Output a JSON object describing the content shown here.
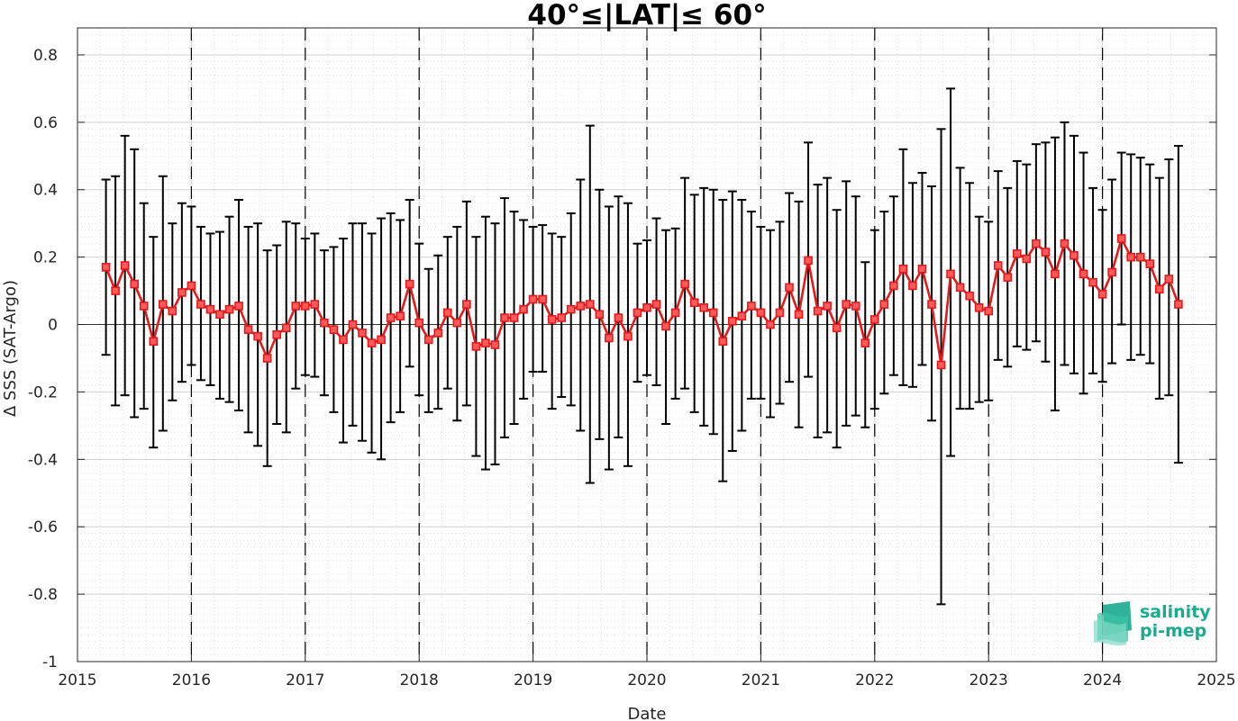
{
  "chart_data": {
    "type": "line",
    "title": "40°≤|LAT|≤ 60°",
    "xlabel": "Date",
    "ylabel": "Δ SSS (SAT-Argo)",
    "xlim": [
      2015,
      2025
    ],
    "ylim": [
      -1,
      0.88
    ],
    "xticks": [
      2015,
      2016,
      2017,
      2018,
      2019,
      2020,
      2021,
      2022,
      2023,
      2024,
      2025
    ],
    "xtick_labels": [
      "2015",
      "2016",
      "2017",
      "2018",
      "2019",
      "2020",
      "2021",
      "2022",
      "2023",
      "2024",
      "2025"
    ],
    "yticks": [
      -1,
      -0.8,
      -0.6,
      -0.4,
      -0.2,
      0,
      0.2,
      0.4,
      0.6,
      0.8
    ],
    "ytick_labels": [
      "-1",
      "-0.8",
      "-0.6",
      "-0.4",
      "-0.2",
      "0",
      "0.2",
      "0.4",
      "0.6",
      "0.8"
    ],
    "grid": "dotted major and minor",
    "year_markers": "dashed vertical lines at each year",
    "zero_line": true,
    "colors": {
      "series": "#e31a1c",
      "errorbar": "#000000",
      "grid": "#d0d0d0"
    },
    "series": [
      {
        "x": [
          "2015-04",
          "2015-05",
          "2015-06",
          "2015-07",
          "2015-08",
          "2015-09",
          "2015-10",
          "2015-11",
          "2015-12",
          "2016-01",
          "2016-02",
          "2016-03",
          "2016-04",
          "2016-05",
          "2016-06",
          "2016-07",
          "2016-08",
          "2016-09",
          "2016-10",
          "2016-11",
          "2016-12",
          "2017-01",
          "2017-02",
          "2017-03",
          "2017-04",
          "2017-05",
          "2017-06",
          "2017-07",
          "2017-08",
          "2017-09",
          "2017-10",
          "2017-11",
          "2017-12",
          "2018-01",
          "2018-02",
          "2018-03",
          "2018-04",
          "2018-05",
          "2018-06",
          "2018-07",
          "2018-08",
          "2018-09",
          "2018-10",
          "2018-11",
          "2018-12",
          "2019-01",
          "2019-02",
          "2019-03",
          "2019-04",
          "2019-05",
          "2019-06",
          "2019-07",
          "2019-08",
          "2019-09",
          "2019-10",
          "2019-11",
          "2019-12",
          "2020-01",
          "2020-02",
          "2020-03",
          "2020-04",
          "2020-05",
          "2020-06",
          "2020-07",
          "2020-08",
          "2020-09",
          "2020-10",
          "2020-11",
          "2020-12",
          "2021-01",
          "2021-02",
          "2021-03",
          "2021-04",
          "2021-05",
          "2021-06",
          "2021-07",
          "2021-08",
          "2021-09",
          "2021-10",
          "2021-11",
          "2021-12",
          "2022-01",
          "2022-02",
          "2022-03",
          "2022-04",
          "2022-05",
          "2022-06",
          "2022-07",
          "2022-08",
          "2022-09",
          "2022-10",
          "2022-11",
          "2022-12",
          "2023-01",
          "2023-02",
          "2023-03",
          "2023-04",
          "2023-05",
          "2023-06",
          "2023-07",
          "2023-08",
          "2023-09",
          "2023-10",
          "2023-11",
          "2023-12",
          "2024-01",
          "2024-02",
          "2024-03",
          "2024-04",
          "2024-05",
          "2024-06",
          "2024-07",
          "2024-08",
          "2024-09"
        ],
        "mean": [
          0.17,
          0.1,
          0.175,
          0.12,
          0.055,
          -0.05,
          0.06,
          0.04,
          0.095,
          0.115,
          0.06,
          0.045,
          0.03,
          0.045,
          0.055,
          -0.015,
          -0.035,
          -0.1,
          -0.03,
          -0.01,
          0.055,
          0.055,
          0.06,
          0.005,
          -0.015,
          -0.045,
          0.0,
          -0.025,
          -0.055,
          -0.045,
          0.02,
          0.025,
          0.12,
          0.005,
          -0.045,
          -0.025,
          0.035,
          0.005,
          0.06,
          -0.065,
          -0.055,
          -0.06,
          0.02,
          0.02,
          0.045,
          0.075,
          0.075,
          0.015,
          0.02,
          0.045,
          0.055,
          0.06,
          0.03,
          -0.04,
          0.02,
          -0.035,
          0.035,
          0.05,
          0.06,
          -0.005,
          0.035,
          0.12,
          0.065,
          0.05,
          0.035,
          -0.05,
          0.01,
          0.025,
          0.055,
          0.035,
          0.0,
          0.035,
          0.11,
          0.03,
          0.19,
          0.04,
          0.055,
          -0.01,
          0.06,
          0.055,
          -0.055,
          0.015,
          0.06,
          0.115,
          0.165,
          0.115,
          0.165,
          0.06,
          -0.12,
          0.15,
          0.11,
          0.085,
          0.05,
          0.04,
          0.175,
          0.14,
          0.21,
          0.195,
          0.24,
          0.215,
          0.15,
          0.24,
          0.205,
          0.15,
          0.125,
          0.09,
          0.155,
          0.255,
          0.2,
          0.2,
          0.18,
          0.105,
          0.135,
          0.06
        ],
        "upper": [
          0.43,
          0.44,
          0.56,
          0.52,
          0.36,
          0.26,
          0.44,
          0.3,
          0.36,
          0.35,
          0.29,
          0.27,
          0.275,
          0.32,
          0.37,
          0.29,
          0.3,
          0.22,
          0.235,
          0.305,
          0.3,
          0.255,
          0.27,
          0.22,
          0.23,
          0.255,
          0.3,
          0.3,
          0.27,
          0.315,
          0.33,
          0.31,
          0.37,
          0.24,
          0.165,
          0.205,
          0.26,
          0.29,
          0.365,
          0.26,
          0.32,
          0.3,
          0.375,
          0.335,
          0.31,
          0.29,
          0.295,
          0.27,
          0.26,
          0.33,
          0.43,
          0.59,
          0.4,
          0.35,
          0.38,
          0.36,
          0.24,
          0.25,
          0.315,
          0.28,
          0.285,
          0.435,
          0.385,
          0.405,
          0.4,
          0.37,
          0.395,
          0.37,
          0.335,
          0.29,
          0.28,
          0.305,
          0.39,
          0.365,
          0.54,
          0.415,
          0.435,
          0.34,
          0.425,
          0.38,
          0.185,
          0.28,
          0.335,
          0.38,
          0.52,
          0.42,
          0.45,
          0.41,
          0.58,
          0.7,
          0.465,
          0.42,
          0.32,
          0.305,
          0.455,
          0.405,
          0.485,
          0.475,
          0.535,
          0.54,
          0.555,
          0.6,
          0.56,
          0.51,
          0.405,
          0.34,
          0.43,
          0.51,
          0.505,
          0.495,
          0.475,
          0.435,
          0.49,
          0.53
        ],
        "lower": [
          -0.09,
          -0.24,
          -0.21,
          -0.275,
          -0.25,
          -0.365,
          -0.315,
          -0.225,
          -0.17,
          -0.12,
          -0.165,
          -0.18,
          -0.22,
          -0.23,
          -0.255,
          -0.32,
          -0.36,
          -0.42,
          -0.295,
          -0.32,
          -0.19,
          -0.15,
          -0.155,
          -0.21,
          -0.26,
          -0.35,
          -0.3,
          -0.345,
          -0.38,
          -0.4,
          -0.29,
          -0.26,
          -0.125,
          -0.21,
          -0.26,
          -0.25,
          -0.19,
          -0.285,
          -0.24,
          -0.39,
          -0.43,
          -0.415,
          -0.335,
          -0.295,
          -0.22,
          -0.14,
          -0.14,
          -0.25,
          -0.215,
          -0.24,
          -0.315,
          -0.47,
          -0.34,
          -0.43,
          -0.335,
          -0.42,
          -0.17,
          -0.15,
          -0.18,
          -0.295,
          -0.22,
          -0.19,
          -0.26,
          -0.3,
          -0.325,
          -0.465,
          -0.375,
          -0.315,
          -0.22,
          -0.22,
          -0.275,
          -0.235,
          -0.17,
          -0.305,
          -0.155,
          -0.335,
          -0.32,
          -0.365,
          -0.3,
          -0.27,
          -0.305,
          -0.25,
          -0.205,
          -0.15,
          -0.18,
          -0.185,
          -0.12,
          -0.285,
          -0.83,
          -0.39,
          -0.25,
          -0.25,
          -0.23,
          -0.225,
          -0.105,
          -0.125,
          -0.065,
          -0.075,
          -0.05,
          -0.11,
          -0.255,
          -0.12,
          -0.145,
          -0.205,
          -0.145,
          -0.17,
          -0.115,
          0.0,
          -0.105,
          -0.09,
          -0.115,
          -0.22,
          -0.21,
          -0.41
        ]
      }
    ]
  },
  "logo": {
    "line1": "salinity",
    "line2": "pi-mep",
    "color": "#1aaa8e"
  }
}
